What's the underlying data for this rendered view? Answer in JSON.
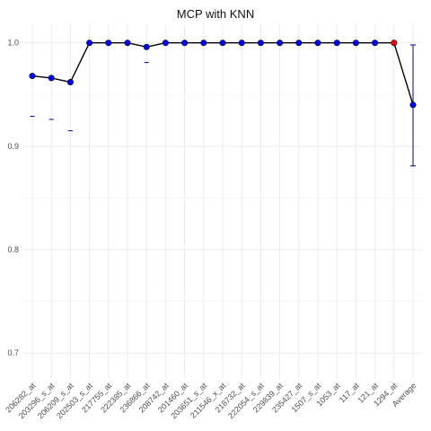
{
  "chart_data": {
    "type": "line",
    "title": "MCP with KNN",
    "xlabel": "",
    "ylabel": "",
    "ylim": [
      0.675,
      1.018
    ],
    "yticks": [
      0.7,
      0.8,
      0.9,
      1.0
    ],
    "ytick_labels": [
      "0.7",
      "0.8",
      "0.9",
      "1.0"
    ],
    "grid": true,
    "legend": "none",
    "categories": [
      "206282_at",
      "203296_s_at",
      "206209_s_at",
      "202503_s_at",
      "217755_at",
      "222385_at",
      "236866_at",
      "208742_at",
      "201460_at",
      "203651_s_at",
      "211546_x_at",
      "218732_at",
      "222054_s_at",
      "229839_at",
      "235427_at",
      "1507_s_at",
      "1053_at",
      "117_at",
      "121_at",
      "1294_at",
      "Average"
    ],
    "values": [
      0.968,
      0.966,
      0.962,
      1.0,
      1.0,
      1.0,
      0.996,
      1.0,
      1.0,
      1.0,
      1.0,
      1.0,
      1.0,
      1.0,
      1.0,
      1.0,
      1.0,
      1.0,
      1.0,
      1.0,
      0.94
    ],
    "lower_bars": [
      0.929,
      0.926,
      0.915,
      null,
      null,
      null,
      0.981,
      null,
      null,
      null,
      null,
      null,
      null,
      null,
      null,
      null,
      null,
      null,
      null,
      null,
      null
    ],
    "errorbar": {
      "index": 20,
      "low": 0.881,
      "high": 0.998
    },
    "highlight_index": 19,
    "colors": {
      "line": "#000000",
      "point": "#0000ff",
      "highlight_point": "#ff0000",
      "lower_bar": "#00008b",
      "errorbar": "#00008b",
      "grid": "#ebebeb"
    }
  }
}
